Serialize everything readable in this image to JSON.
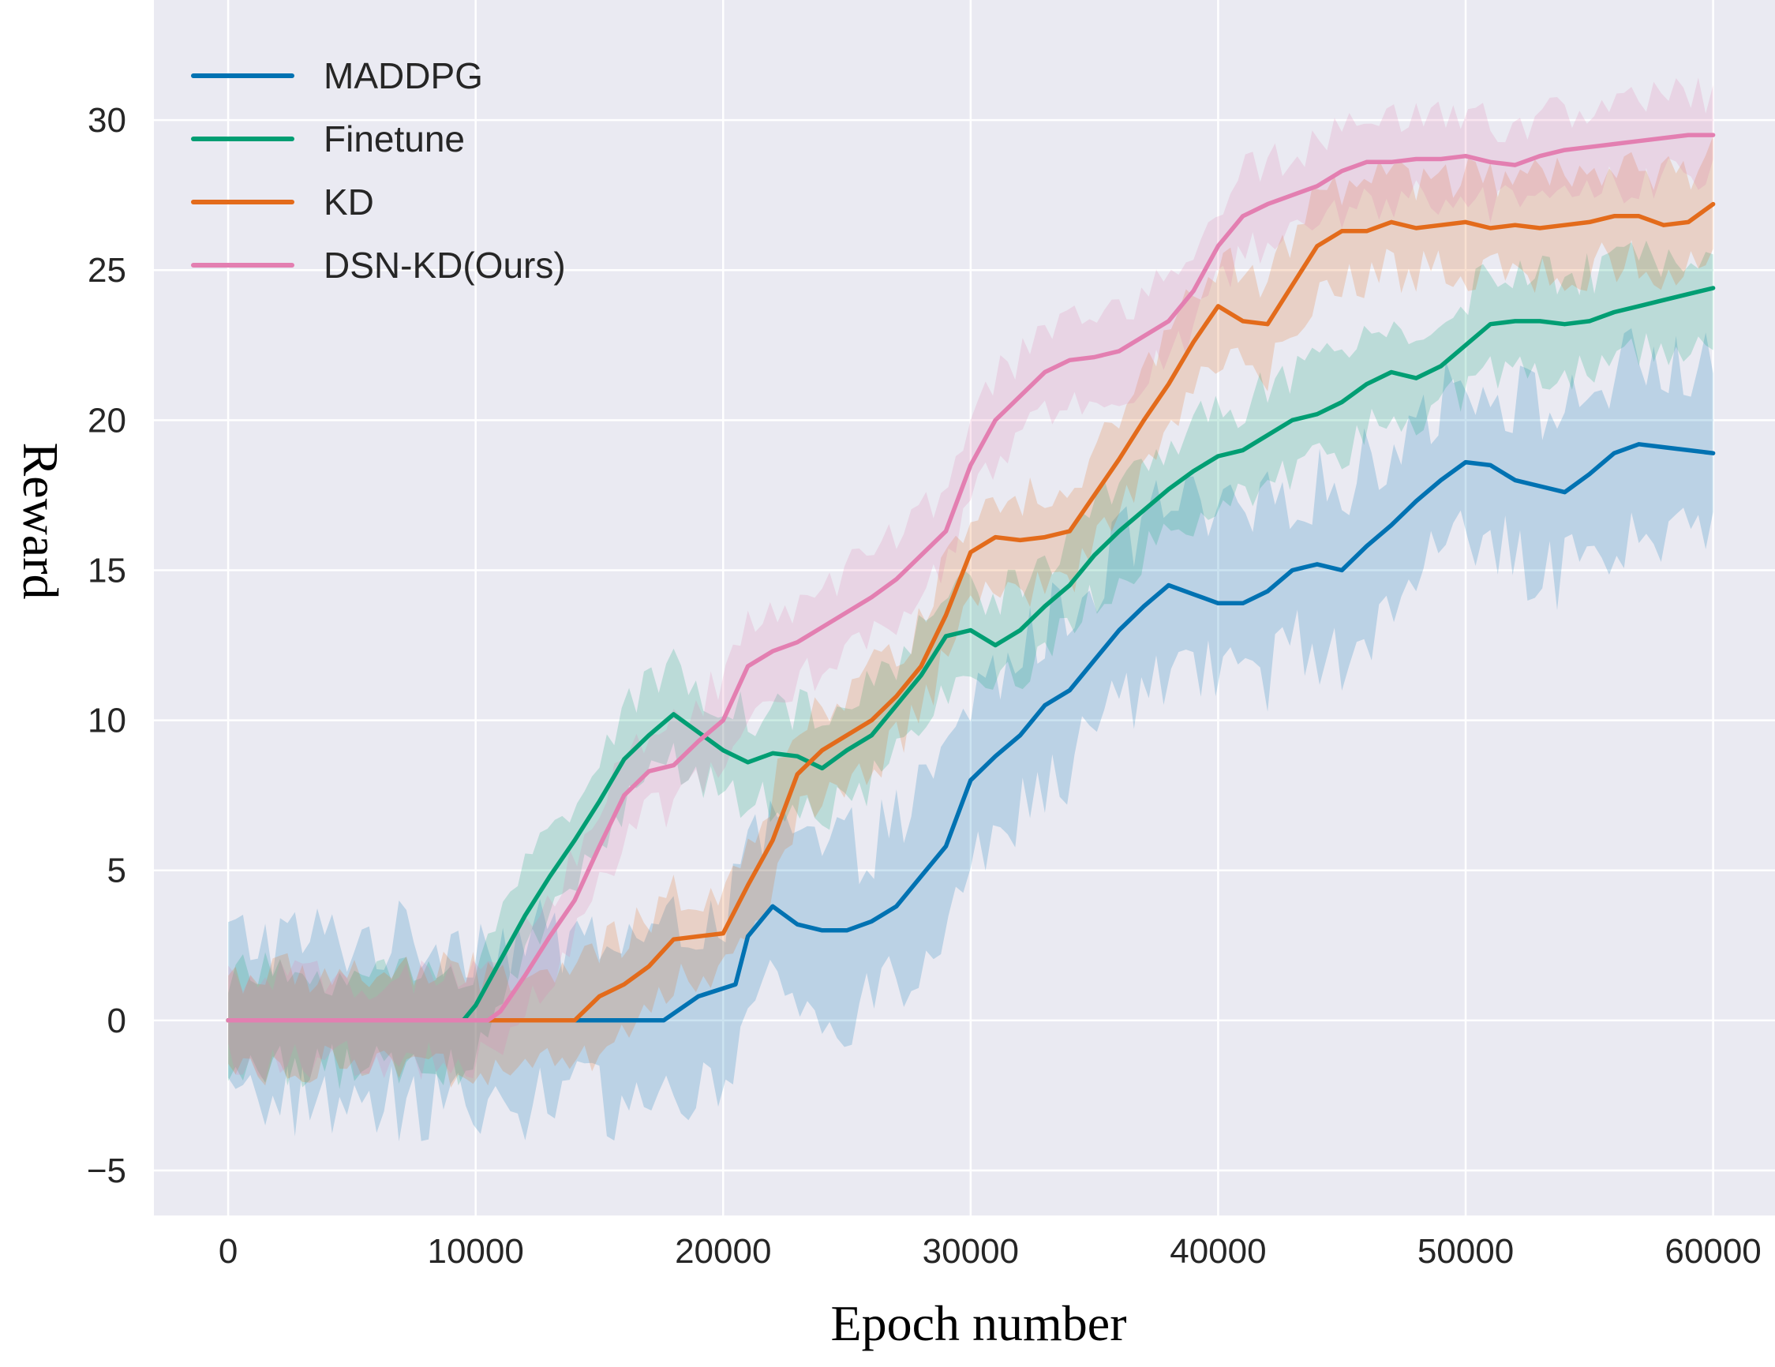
{
  "chart_data": {
    "type": "line",
    "title": "",
    "xlabel": "Epoch number",
    "ylabel": "Reward",
    "xlim": [
      -3000,
      62500
    ],
    "ylim": [
      -6.5,
      34
    ],
    "xticks": [
      0,
      10000,
      20000,
      30000,
      40000,
      50000,
      60000
    ],
    "xtick_labels": [
      "0",
      "10000",
      "20000",
      "30000",
      "40000",
      "50000",
      "60000"
    ],
    "yticks": [
      -5,
      0,
      5,
      10,
      15,
      20,
      25,
      30
    ],
    "ytick_labels": [
      "−5",
      "0",
      "5",
      "10",
      "15",
      "20",
      "25",
      "30"
    ],
    "grid": true,
    "background": "#eaeaf2",
    "legend_position": "top-left",
    "series": [
      {
        "name": "MADDPG",
        "color": "#0072b2",
        "band_halfwidth": 3.0,
        "x": [
          0,
          10000,
          14000,
          17600,
          19000,
          20500,
          21000,
          22000,
          23000,
          24000,
          25000,
          26000,
          27000,
          28000,
          29000,
          30000,
          31000,
          32000,
          33000,
          34000,
          35000,
          36000,
          37000,
          38000,
          39000,
          40000,
          41000,
          42000,
          43000,
          44000,
          45000,
          46000,
          47000,
          48000,
          49000,
          50000,
          51000,
          52000,
          53000,
          54000,
          55000,
          56000,
          57000,
          58000,
          59000,
          60000
        ],
        "y": [
          0,
          0,
          0,
          0,
          0.8,
          1.2,
          2.8,
          3.8,
          3.2,
          3.0,
          3.0,
          3.3,
          3.8,
          4.8,
          5.8,
          8.0,
          8.8,
          9.5,
          10.5,
          11.0,
          12.0,
          13.0,
          13.8,
          14.5,
          14.2,
          13.9,
          13.9,
          14.3,
          15.0,
          15.2,
          15.0,
          15.8,
          16.5,
          17.3,
          18.0,
          18.6,
          18.5,
          18.0,
          17.8,
          17.6,
          18.2,
          18.9,
          19.2,
          19.1,
          19.0,
          18.9
        ]
      },
      {
        "name": "Finetune",
        "color": "#009e73",
        "band_halfwidth": 1.7,
        "x": [
          0,
          9500,
          10000,
          11000,
          12000,
          13000,
          14000,
          15000,
          16000,
          17000,
          18000,
          19000,
          20000,
          21000,
          22000,
          23000,
          24000,
          25000,
          26000,
          27000,
          28000,
          29000,
          30000,
          31000,
          32000,
          33000,
          34000,
          35000,
          36000,
          37000,
          38000,
          39000,
          40000,
          41000,
          42000,
          43000,
          44000,
          45000,
          46000,
          47000,
          48000,
          49000,
          50000,
          51000,
          52000,
          53000,
          54000,
          55000,
          56000,
          57000,
          58000,
          59000,
          60000
        ],
        "y": [
          0,
          0,
          0.5,
          2.0,
          3.5,
          4.8,
          6.0,
          7.3,
          8.7,
          9.5,
          10.2,
          9.6,
          9.0,
          8.6,
          8.9,
          8.8,
          8.4,
          9.0,
          9.5,
          10.5,
          11.5,
          12.8,
          13.0,
          12.5,
          13.0,
          13.8,
          14.5,
          15.5,
          16.3,
          17.0,
          17.7,
          18.3,
          18.8,
          19.0,
          19.5,
          20.0,
          20.2,
          20.6,
          21.2,
          21.6,
          21.4,
          21.8,
          22.5,
          23.2,
          23.3,
          23.3,
          23.2,
          23.3,
          23.6,
          23.8,
          24.0,
          24.2,
          24.4
        ]
      },
      {
        "name": "KD",
        "color": "#e36b1b",
        "band_halfwidth": 1.7,
        "x": [
          0,
          10500,
          14000,
          15000,
          16000,
          17000,
          18000,
          19000,
          20000,
          21000,
          22000,
          23000,
          24000,
          25000,
          26000,
          27000,
          28000,
          29000,
          30000,
          31000,
          32000,
          33000,
          34000,
          35000,
          36000,
          37000,
          38000,
          39000,
          40000,
          41000,
          42000,
          43000,
          44000,
          45000,
          46000,
          47000,
          48000,
          49000,
          50000,
          51000,
          52000,
          53000,
          54000,
          55000,
          56000,
          57000,
          58000,
          59000,
          60000
        ],
        "y": [
          0,
          0,
          0,
          0.8,
          1.2,
          1.8,
          2.7,
          2.8,
          2.9,
          4.5,
          6.0,
          8.2,
          9.0,
          9.5,
          10.0,
          10.8,
          11.8,
          13.5,
          15.6,
          16.1,
          16.0,
          16.1,
          16.3,
          17.5,
          18.7,
          20.0,
          21.2,
          22.6,
          23.8,
          23.3,
          23.2,
          24.5,
          25.8,
          26.3,
          26.3,
          26.6,
          26.4,
          26.5,
          26.6,
          26.4,
          26.5,
          26.4,
          26.5,
          26.6,
          26.8,
          26.8,
          26.5,
          26.6,
          27.2
        ]
      },
      {
        "name": "DSN-KD(Ours)",
        "color": "#e37fb1",
        "band_halfwidth": 1.5,
        "x": [
          0,
          10500,
          11000,
          12000,
          13000,
          14000,
          15000,
          16000,
          17000,
          18000,
          19000,
          20000,
          21000,
          22000,
          23000,
          24000,
          25000,
          26000,
          27000,
          28000,
          29000,
          30000,
          31000,
          32000,
          33000,
          34000,
          35000,
          36000,
          37000,
          38000,
          39000,
          40000,
          41000,
          42000,
          43000,
          44000,
          45000,
          46000,
          47000,
          48000,
          49000,
          50000,
          51000,
          52000,
          53000,
          54000,
          55000,
          56000,
          57000,
          58000,
          59000,
          60000
        ],
        "y": [
          0,
          0,
          0.3,
          1.5,
          2.8,
          4.0,
          5.8,
          7.5,
          8.3,
          8.5,
          9.3,
          10.0,
          11.8,
          12.3,
          12.6,
          13.1,
          13.6,
          14.1,
          14.7,
          15.5,
          16.3,
          18.5,
          20.0,
          20.8,
          21.6,
          22.0,
          22.1,
          22.3,
          22.8,
          23.3,
          24.3,
          25.8,
          26.8,
          27.2,
          27.5,
          27.8,
          28.3,
          28.6,
          28.6,
          28.7,
          28.7,
          28.8,
          28.6,
          28.5,
          28.8,
          29.0,
          29.1,
          29.2,
          29.3,
          29.4,
          29.5,
          29.5
        ]
      }
    ]
  }
}
